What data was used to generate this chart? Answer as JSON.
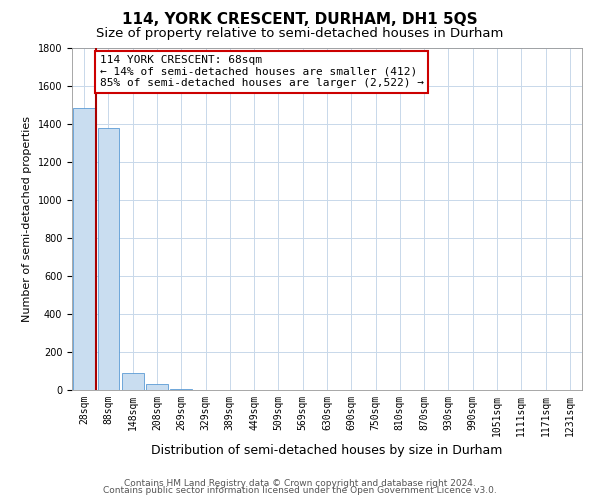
{
  "title": "114, YORK CRESCENT, DURHAM, DH1 5QS",
  "subtitle": "Size of property relative to semi-detached houses in Durham",
  "xlabel": "Distribution of semi-detached houses by size in Durham",
  "ylabel": "Number of semi-detached properties",
  "annotation_title": "114 YORK CRESCENT: 68sqm",
  "annotation_line1": "← 14% of semi-detached houses are smaller (412)",
  "annotation_line2": "85% of semi-detached houses are larger (2,522) →",
  "footer1": "Contains HM Land Registry data © Crown copyright and database right 2024.",
  "footer2": "Contains public sector information licensed under the Open Government Licence v3.0.",
  "bar_color": "#c9ddf0",
  "bar_edge_color": "#5b9bd5",
  "vline_color": "#aa0000",
  "ylim": [
    0,
    1800
  ],
  "yticks": [
    0,
    200,
    400,
    600,
    800,
    1000,
    1200,
    1400,
    1600,
    1800
  ],
  "background_color": "#ffffff",
  "grid_color": "#c8d8ea",
  "categories": [
    "28sqm",
    "88sqm",
    "148sqm",
    "208sqm",
    "269sqm",
    "329sqm",
    "389sqm",
    "449sqm",
    "509sqm",
    "569sqm",
    "630sqm",
    "690sqm",
    "750sqm",
    "810sqm",
    "870sqm",
    "930sqm",
    "990sqm",
    "1051sqm",
    "1111sqm",
    "1171sqm",
    "1231sqm"
  ],
  "values": [
    1480,
    1375,
    90,
    30,
    4,
    2,
    1,
    0,
    0,
    0,
    1,
    0,
    0,
    0,
    0,
    0,
    0,
    0,
    0,
    0,
    0
  ],
  "vline_bin_index": 0,
  "title_fontsize": 11,
  "subtitle_fontsize": 9.5,
  "xlabel_fontsize": 9,
  "ylabel_fontsize": 8,
  "tick_fontsize": 7,
  "annotation_fontsize": 8,
  "footer_fontsize": 6.5
}
